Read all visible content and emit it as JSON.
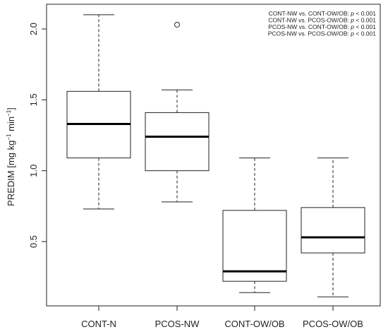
{
  "chart_data": {
    "type": "box",
    "ylabel": "PREDIM [mg kg",
    "ylabel_sup1": "−1",
    "ylabel_mid": " min",
    "ylabel_sup2": "−1",
    "ylabel_end": "]",
    "ylim": [
      0.0,
      2.15
    ],
    "yticks": [
      0.5,
      1.0,
      1.5,
      2.0
    ],
    "ytick_labels": [
      "0.5",
      "1.0",
      "1.5",
      "2.0"
    ],
    "categories": [
      "CONT-N",
      "PCOS-NW",
      "CONT-OW/OB",
      "PCOS-OW/OB"
    ],
    "boxes": [
      {
        "whisker_low": 0.73,
        "q1": 1.09,
        "median": 1.33,
        "q3": 1.56,
        "whisker_high": 2.1,
        "outliers": []
      },
      {
        "whisker_low": 0.78,
        "q1": 1.0,
        "median": 1.24,
        "q3": 1.41,
        "whisker_high": 1.57,
        "outliers": [
          2.03
        ]
      },
      {
        "whisker_low": 0.14,
        "q1": 0.22,
        "median": 0.29,
        "q3": 0.72,
        "whisker_high": 1.09,
        "outliers": []
      },
      {
        "whisker_low": 0.11,
        "q1": 0.42,
        "median": 0.53,
        "q3": 0.74,
        "whisker_high": 1.09,
        "outliers": []
      }
    ],
    "annotations": [
      {
        "text": "CONT-NW vs. CONT-OW/OB: ",
        "p": "p",
        "rest": " < 0.001"
      },
      {
        "text": "CONT-NW vs. PCOS-OW/OB: ",
        "p": "p",
        "rest": " < 0.001"
      },
      {
        "text": "PCOS-NW vs. CONT-OW/OB: ",
        "p": "p",
        "rest": " < 0.001"
      },
      {
        "text": "PCOS-NW vs. PCOS-OW/OB: ",
        "p": "p",
        "rest": " < 0.001"
      }
    ]
  }
}
